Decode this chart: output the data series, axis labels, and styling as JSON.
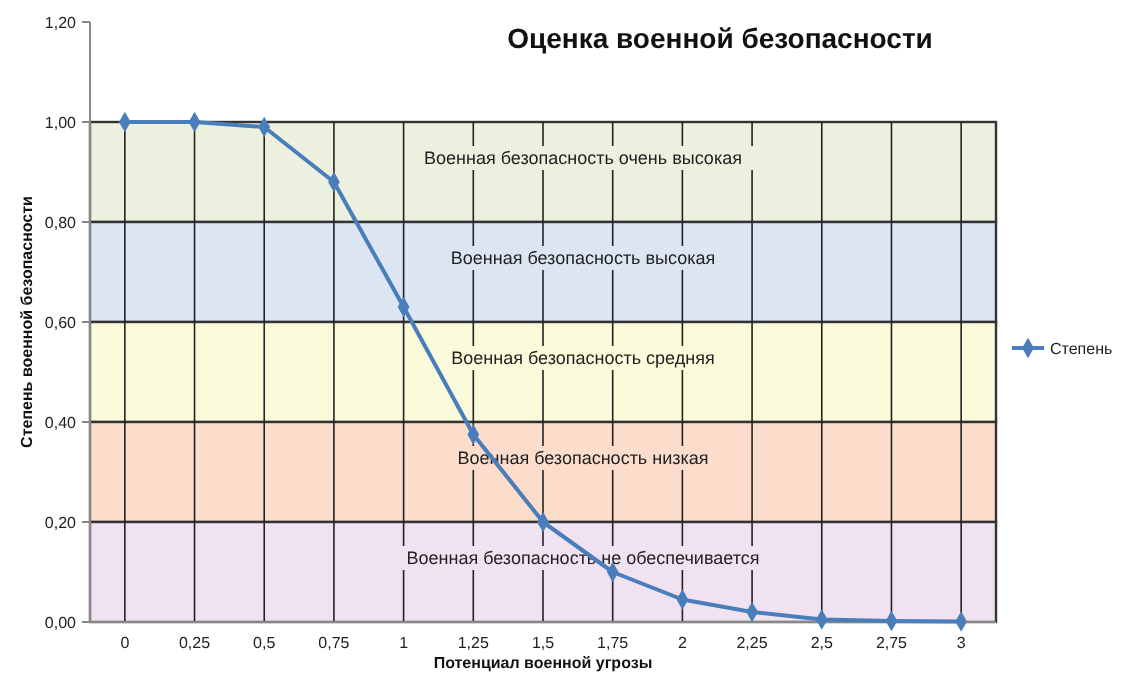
{
  "chart_data": {
    "type": "line",
    "title": "Оценка военной безопасности",
    "xlabel": "Потенциал военной угрозы",
    "ylabel": "Степень военной безопасности",
    "categories": [
      "0",
      "0,25",
      "0,5",
      "0,75",
      "1",
      "1,25",
      "1,5",
      "1,75",
      "2",
      "2,25",
      "2,5",
      "2,75",
      "3"
    ],
    "series": [
      {
        "name": "Степень",
        "color": "#4a7ebb",
        "values": [
          1.0,
          1.0,
          0.99,
          0.88,
          0.63,
          0.375,
          0.2,
          0.1,
          0.045,
          0.02,
          0.005,
          0.002,
          0.001
        ]
      }
    ],
    "ylim": [
      0,
      1.2
    ],
    "yticks": [
      {
        "value": 0,
        "label": "0,00"
      },
      {
        "value": 0.2,
        "label": "0,20"
      },
      {
        "value": 0.4,
        "label": "0,40"
      },
      {
        "value": 0.6,
        "label": "0,60"
      },
      {
        "value": 0.8,
        "label": "0,80"
      },
      {
        "value": 1,
        "label": "1,00"
      },
      {
        "value": 1.2,
        "label": "1,20"
      }
    ],
    "bands": [
      {
        "axis": "y",
        "from": 0.8,
        "to": 1.0,
        "label": "Военная безопасность очень высокая",
        "color": "#ebf1de"
      },
      {
        "axis": "y",
        "from": 0.6,
        "to": 0.8,
        "label": "Военная безопасность высокая",
        "color": "#dce6f2"
      },
      {
        "axis": "y",
        "from": 0.4,
        "to": 0.6,
        "label": "Военная безопасность средняя",
        "color": "#fbfbdc"
      },
      {
        "axis": "y",
        "from": 0.2,
        "to": 0.4,
        "label": "Военная безопасность низкая",
        "color": "#fcdccb"
      },
      {
        "axis": "y",
        "from": 0,
        "to": 0.2,
        "label": "Военная безопасность не обеспечивается",
        "color": "#f0e2f0"
      }
    ],
    "grid": "x",
    "legend": "right",
    "marker": "diamond",
    "line_style": "solid"
  }
}
